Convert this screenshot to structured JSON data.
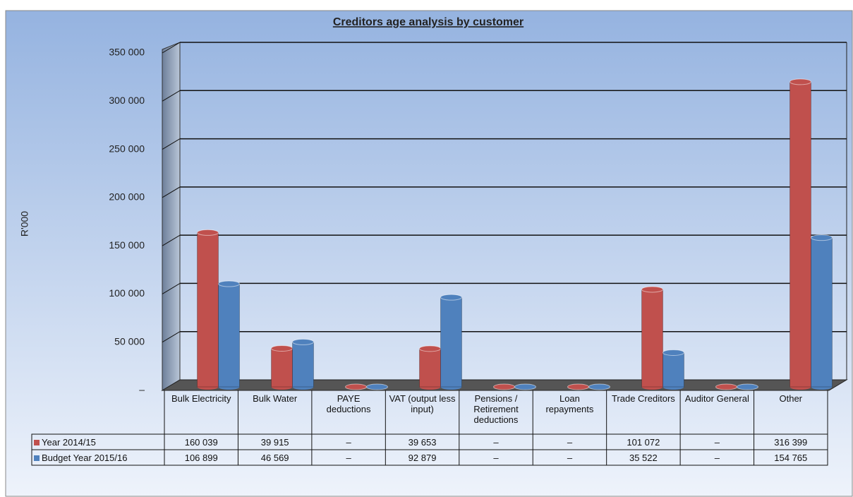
{
  "chart_data": {
    "type": "bar",
    "title": "Creditors age analysis by customer",
    "y_label": "R'000",
    "categories": [
      "Bulk Electricity",
      "Bulk Water",
      "PAYE deductions",
      "VAT (output less input)",
      "Pensions / Retirement deductions",
      "Loan repayments",
      "Trade Creditors",
      "Auditor General",
      "Other"
    ],
    "series": [
      {
        "name": "Year 2014/15",
        "color": "#c0504d",
        "values": [
          160039,
          39915,
          0,
          39653,
          0,
          0,
          101072,
          0,
          316399
        ],
        "value_labels": [
          "160 039",
          "39 915",
          "–",
          "39 653",
          "–",
          "–",
          "101 072",
          "–",
          "316 399"
        ]
      },
      {
        "name": "Budget Year 2015/16",
        "color": "#4f81bd",
        "values": [
          106899,
          46569,
          0,
          92879,
          0,
          0,
          35522,
          0,
          154765
        ],
        "value_labels": [
          "106 899",
          "46 569",
          "–",
          "92 879",
          "–",
          "–",
          "35 522",
          "–",
          "154 765"
        ]
      }
    ],
    "ylim": [
      0,
      350000
    ],
    "yticks": [
      {
        "value": 0,
        "label": "–"
      },
      {
        "value": 50000,
        "label": "50 000"
      },
      {
        "value": 100000,
        "label": "100 000"
      },
      {
        "value": 150000,
        "label": "150 000"
      },
      {
        "value": 200000,
        "label": "200 000"
      },
      {
        "value": 250000,
        "label": "250 000"
      },
      {
        "value": 300000,
        "label": "300 000"
      },
      {
        "value": 350000,
        "label": "350 000"
      }
    ],
    "grid": true
  }
}
